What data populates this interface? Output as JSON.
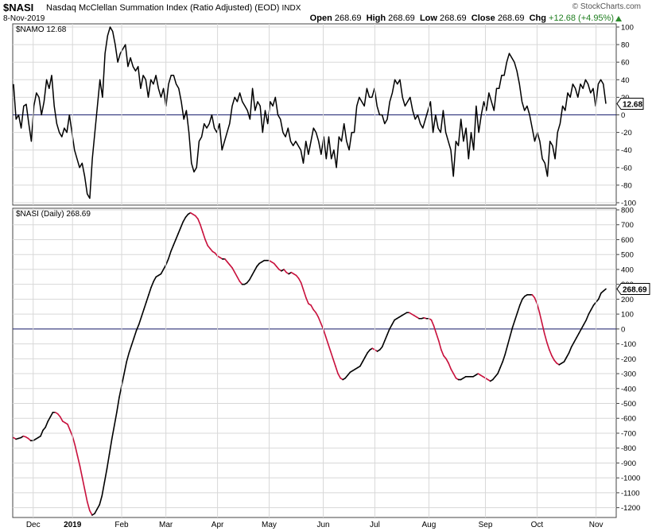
{
  "header": {
    "symbol": "$NASI",
    "description": "Nasdaq McClellan Summation Index (Ratio Adjusted) (EOD)",
    "exchange": "INDX",
    "date": "8-Nov-2019",
    "brand": "© StockCharts.com",
    "open_label": "Open",
    "open": "268.69",
    "high_label": "High",
    "high": "268.69",
    "low_label": "Low",
    "low": "268.69",
    "close_label": "Close",
    "close": "268.69",
    "chg_label": "Chg",
    "chg": "+12.68 (+4.95%)"
  },
  "colors": {
    "line": "#000000",
    "declining": "#c8103c",
    "zero_line": "#1a1f6e",
    "grid": "#d8d8d8",
    "up": "#1e7d1e"
  },
  "chart_data": [
    {
      "type": "line",
      "legend": "$NAMO 12.68",
      "last_value_label": "12.68",
      "ylim": [
        -100,
        100
      ],
      "yticks": [
        -100,
        -80,
        -60,
        -40,
        -20,
        0,
        20,
        40,
        60,
        80,
        100
      ],
      "reference_line": 0,
      "grid": true,
      "series": [
        {
          "values": [
            35,
            -5,
            0,
            -15,
            10,
            12,
            -10,
            -30,
            10,
            25,
            20,
            0,
            15,
            40,
            30,
            45,
            10,
            -10,
            -20,
            -25,
            -15,
            -20,
            0,
            -20,
            -40,
            -50,
            -60,
            -55,
            -70,
            -90,
            -95,
            -50,
            -20,
            10,
            40,
            20,
            70,
            90,
            100,
            95,
            80,
            60,
            70,
            75,
            80,
            55,
            65,
            55,
            50,
            55,
            30,
            45,
            40,
            20,
            40,
            35,
            45,
            30,
            20,
            30,
            10,
            35,
            45,
            45,
            35,
            30,
            15,
            -5,
            5,
            -20,
            -55,
            -65,
            -60,
            -30,
            -25,
            -10,
            -15,
            -10,
            0,
            -15,
            -20,
            -10,
            -40,
            -30,
            -20,
            -10,
            10,
            20,
            15,
            25,
            15,
            10,
            5,
            -5,
            30,
            5,
            15,
            10,
            -20,
            5,
            -10,
            15,
            10,
            20,
            0,
            -5,
            -20,
            -25,
            -15,
            -30,
            -35,
            -30,
            -35,
            -40,
            -55,
            -30,
            -45,
            -30,
            -15,
            -20,
            -30,
            -45,
            -25,
            -50,
            -25,
            -50,
            -40,
            -60,
            -25,
            -30,
            -10,
            -30,
            -40,
            -20,
            -20,
            10,
            20,
            15,
            10,
            30,
            20,
            20,
            30,
            10,
            0,
            0,
            -10,
            -5,
            15,
            25,
            40,
            35,
            40,
            20,
            10,
            15,
            20,
            5,
            -5,
            0,
            -10,
            -15,
            -5,
            5,
            15,
            -20,
            0,
            -15,
            -20,
            5,
            -20,
            -30,
            -40,
            -70,
            -30,
            -35,
            -5,
            -30,
            -15,
            -50,
            -20,
            -40,
            10,
            -20,
            0,
            15,
            5,
            25,
            15,
            5,
            30,
            30,
            45,
            45,
            60,
            70,
            65,
            60,
            50,
            35,
            15,
            5,
            10,
            0,
            -15,
            -30,
            -20,
            -30,
            -50,
            -55,
            -70,
            -30,
            -35,
            -50,
            -20,
            -10,
            10,
            5,
            25,
            20,
            35,
            30,
            20,
            35,
            30,
            40,
            35,
            25,
            30,
            10,
            35,
            40,
            35,
            12.68
          ]
        }
      ]
    },
    {
      "type": "line",
      "legend": "$NASI (Daily) 268.69",
      "last_value_label": "268.69",
      "ylim": [
        -1250,
        800
      ],
      "yticks": [
        -1200,
        -1100,
        -1000,
        -900,
        -800,
        -700,
        -600,
        -500,
        -400,
        -300,
        -200,
        -100,
        0,
        100,
        200,
        300,
        400,
        500,
        600,
        700,
        800
      ],
      "reference_line": 0,
      "grid": true,
      "x_tick_labels": [
        "Dec",
        "2019",
        "Feb",
        "Mar",
        "Apr",
        "May",
        "Jun",
        "Jul",
        "Aug",
        "Sep",
        "Oct",
        "Nov"
      ],
      "x_tick_positions": [
        8,
        24,
        44,
        62,
        83,
        104,
        126,
        147,
        169,
        192,
        213,
        237
      ],
      "series": [
        {
          "values": [
            -730,
            -740,
            -735,
            -730,
            -720,
            -725,
            -735,
            -750,
            -750,
            -740,
            -730,
            -720,
            -680,
            -660,
            -620,
            -590,
            -560,
            -560,
            -570,
            -590,
            -620,
            -630,
            -640,
            -680,
            -720,
            -780,
            -850,
            -920,
            -1000,
            -1080,
            -1160,
            -1220,
            -1250,
            -1240,
            -1210,
            -1180,
            -1120,
            -1030,
            -940,
            -840,
            -740,
            -650,
            -560,
            -460,
            -380,
            -300,
            -220,
            -160,
            -110,
            -60,
            -10,
            30,
            80,
            130,
            180,
            230,
            280,
            320,
            350,
            360,
            370,
            400,
            430,
            470,
            520,
            560,
            600,
            640,
            680,
            720,
            750,
            770,
            780,
            770,
            760,
            740,
            700,
            650,
            600,
            560,
            540,
            520,
            510,
            490,
            480,
            470,
            470,
            450,
            430,
            410,
            380,
            350,
            320,
            300,
            300,
            310,
            330,
            360,
            390,
            420,
            440,
            450,
            460,
            460,
            460,
            450,
            440,
            420,
            400,
            390,
            400,
            380,
            370,
            380,
            370,
            360,
            340,
            310,
            260,
            210,
            170,
            160,
            130,
            110,
            80,
            40,
            0,
            -50,
            -100,
            -150,
            -200,
            -250,
            -300,
            -330,
            -340,
            -330,
            -310,
            -290,
            -280,
            -270,
            -260,
            -250,
            -220,
            -190,
            -160,
            -140,
            -130,
            -140,
            -150,
            -140,
            -120,
            -80,
            -40,
            0,
            30,
            60,
            70,
            80,
            90,
            100,
            110,
            110,
            100,
            90,
            80,
            70,
            70,
            75,
            70,
            70,
            60,
            20,
            -30,
            -80,
            -140,
            -180,
            -200,
            -230,
            -270,
            -300,
            -330,
            -340,
            -340,
            -330,
            -320,
            -320,
            -320,
            -320,
            -310,
            -300,
            -310,
            -320,
            -330,
            -340,
            -350,
            -340,
            -320,
            -300,
            -260,
            -220,
            -170,
            -110,
            -50,
            10,
            60,
            110,
            160,
            200,
            220,
            230,
            230,
            230,
            210,
            170,
            110,
            40,
            -30,
            -90,
            -140,
            -180,
            -210,
            -230,
            -240,
            -230,
            -220,
            -190,
            -160,
            -120,
            -90,
            -60,
            -30,
            0,
            30,
            60,
            100,
            130,
            160,
            180,
            200,
            240,
            255,
            268.69
          ]
        }
      ]
    }
  ]
}
